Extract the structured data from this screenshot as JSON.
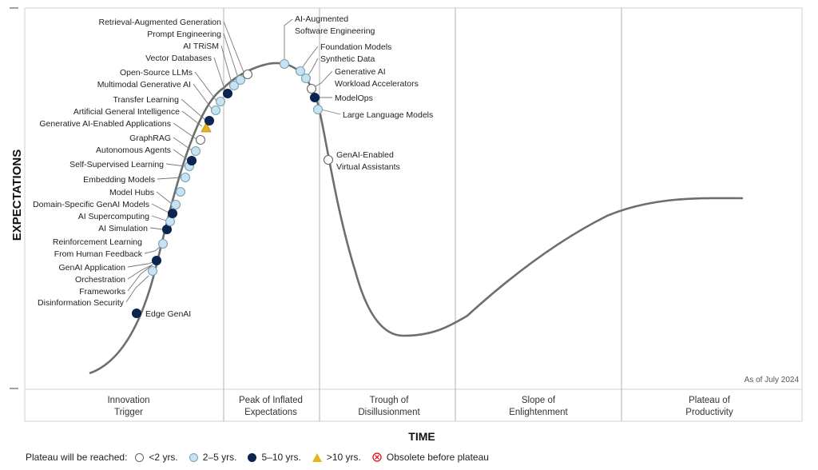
{
  "axes": {
    "y_title": "EXPECTATIONS",
    "x_title": "TIME"
  },
  "as_of": "As of July 2024",
  "phases": [
    [
      "Innovation",
      "Trigger"
    ],
    [
      "Peak of Inflated",
      "Expectations"
    ],
    [
      "Trough of",
      "Disillusionment"
    ],
    [
      "Slope of",
      "Enlightenment"
    ],
    [
      "Plateau of",
      "Productivity"
    ]
  ],
  "legend": {
    "title": "Plateau will be reached:",
    "items": [
      {
        "key": "lt2",
        "label": "<2 yrs."
      },
      {
        "key": "t25",
        "label": "2–5 yrs."
      },
      {
        "key": "t510",
        "label": "5–10 yrs."
      },
      {
        "key": "gt10",
        "label": ">10 yrs."
      },
      {
        "key": "obs",
        "label": "Obsolete before plateau"
      }
    ]
  },
  "colors": {
    "lt2": "#ffffff",
    "t25": "#c5e3f3",
    "t510": "#0c2450",
    "gt10": "#e6b21e",
    "obsolete": "#d7262c",
    "curve": "#6b6f6e",
    "divider": "#bdbdbd",
    "grid": "#d0d0d0"
  },
  "technologies": [
    {
      "name": "Edge GenAI",
      "cat": "t510"
    },
    {
      "name": "Disinformation Security",
      "cat": "t25"
    },
    {
      "name": "Frameworks",
      "cat": "t510"
    },
    {
      "name": "Orchestration",
      "cat": "t510"
    },
    {
      "name": "GenAI Application",
      "cat": "t510"
    },
    {
      "name": "From Human Feedback",
      "cat": "t25"
    },
    {
      "name": "Reinforcement Learning",
      "cat": "t25"
    },
    {
      "name": "AI Simulation",
      "cat": "t510"
    },
    {
      "name": "AI Supercomputing",
      "cat": "t25"
    },
    {
      "name": "Domain-Specific GenAI Models",
      "cat": "t510"
    },
    {
      "name": "Model Hubs",
      "cat": "t25"
    },
    {
      "name": "Embedding Models",
      "cat": "t25"
    },
    {
      "name": "Self-Supervised Learning",
      "cat": "t25"
    },
    {
      "name": "Autonomous Agents",
      "cat": "t510"
    },
    {
      "name": "GraphRAG",
      "cat": "t25"
    },
    {
      "name": "Generative AI-Enabled Applications",
      "cat": "lt2"
    },
    {
      "name": "Artificial General Intelligence",
      "cat": "gt10"
    },
    {
      "name": "Transfer Learning",
      "cat": "t510"
    },
    {
      "name": "Multimodal Generative AI",
      "cat": "t25"
    },
    {
      "name": "Open-Source LLMs",
      "cat": "t25"
    },
    {
      "name": "Vector Databases",
      "cat": "t510"
    },
    {
      "name": "AI TRiSM",
      "cat": "t25"
    },
    {
      "name": "Prompt Engineering",
      "cat": "t25"
    },
    {
      "name": "Retrieval-Augmented Generation",
      "cat": "lt2"
    },
    {
      "name": "AI-Augmented Software Engineering",
      "cat": "t25"
    },
    {
      "name": "Foundation Models",
      "cat": "t25"
    },
    {
      "name": "Synthetic Data",
      "cat": "t25"
    },
    {
      "name": "Generative AI Workload Accelerators",
      "cat": "lt2"
    },
    {
      "name": "ModelOps",
      "cat": "t510"
    },
    {
      "name": "Large Language Models",
      "cat": "t25"
    },
    {
      "name": "GenAI-Enabled Virtual Assistants",
      "cat": "lt2"
    }
  ]
}
